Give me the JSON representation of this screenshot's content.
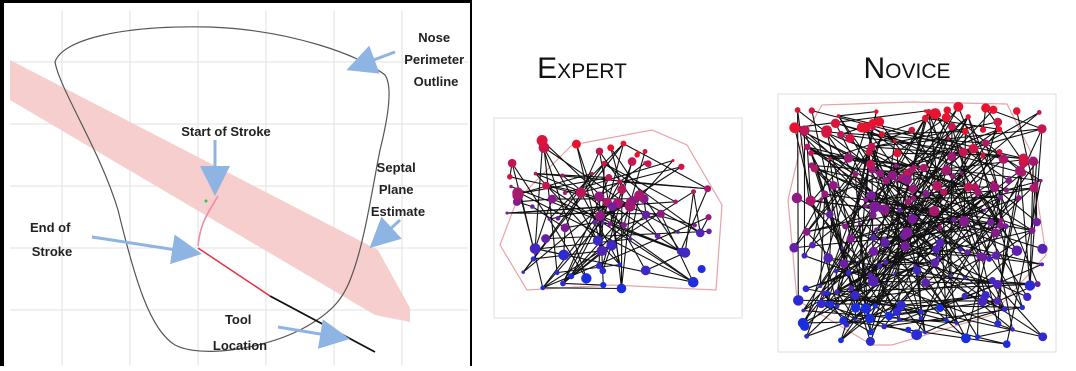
{
  "left": {
    "nose_label": [
      "Nose",
      "Perimeter",
      "Outline"
    ],
    "start_label": "Start of Stroke",
    "septal_label": [
      "Septal",
      "Plane",
      "Estimate"
    ],
    "end_label": [
      "End of",
      "Stroke"
    ],
    "tool_label": [
      "Tool",
      "Location"
    ]
  },
  "right": {
    "expert_title": "Expert",
    "novice_title": "Novice"
  },
  "colors": {
    "arrow": "#8db4e2",
    "band": "#f6c9c9",
    "red_node": "#e8132e",
    "blue_node": "#1a2ee0",
    "purple_node": "#7a1c9a",
    "hull": "#e7a3a8"
  }
}
